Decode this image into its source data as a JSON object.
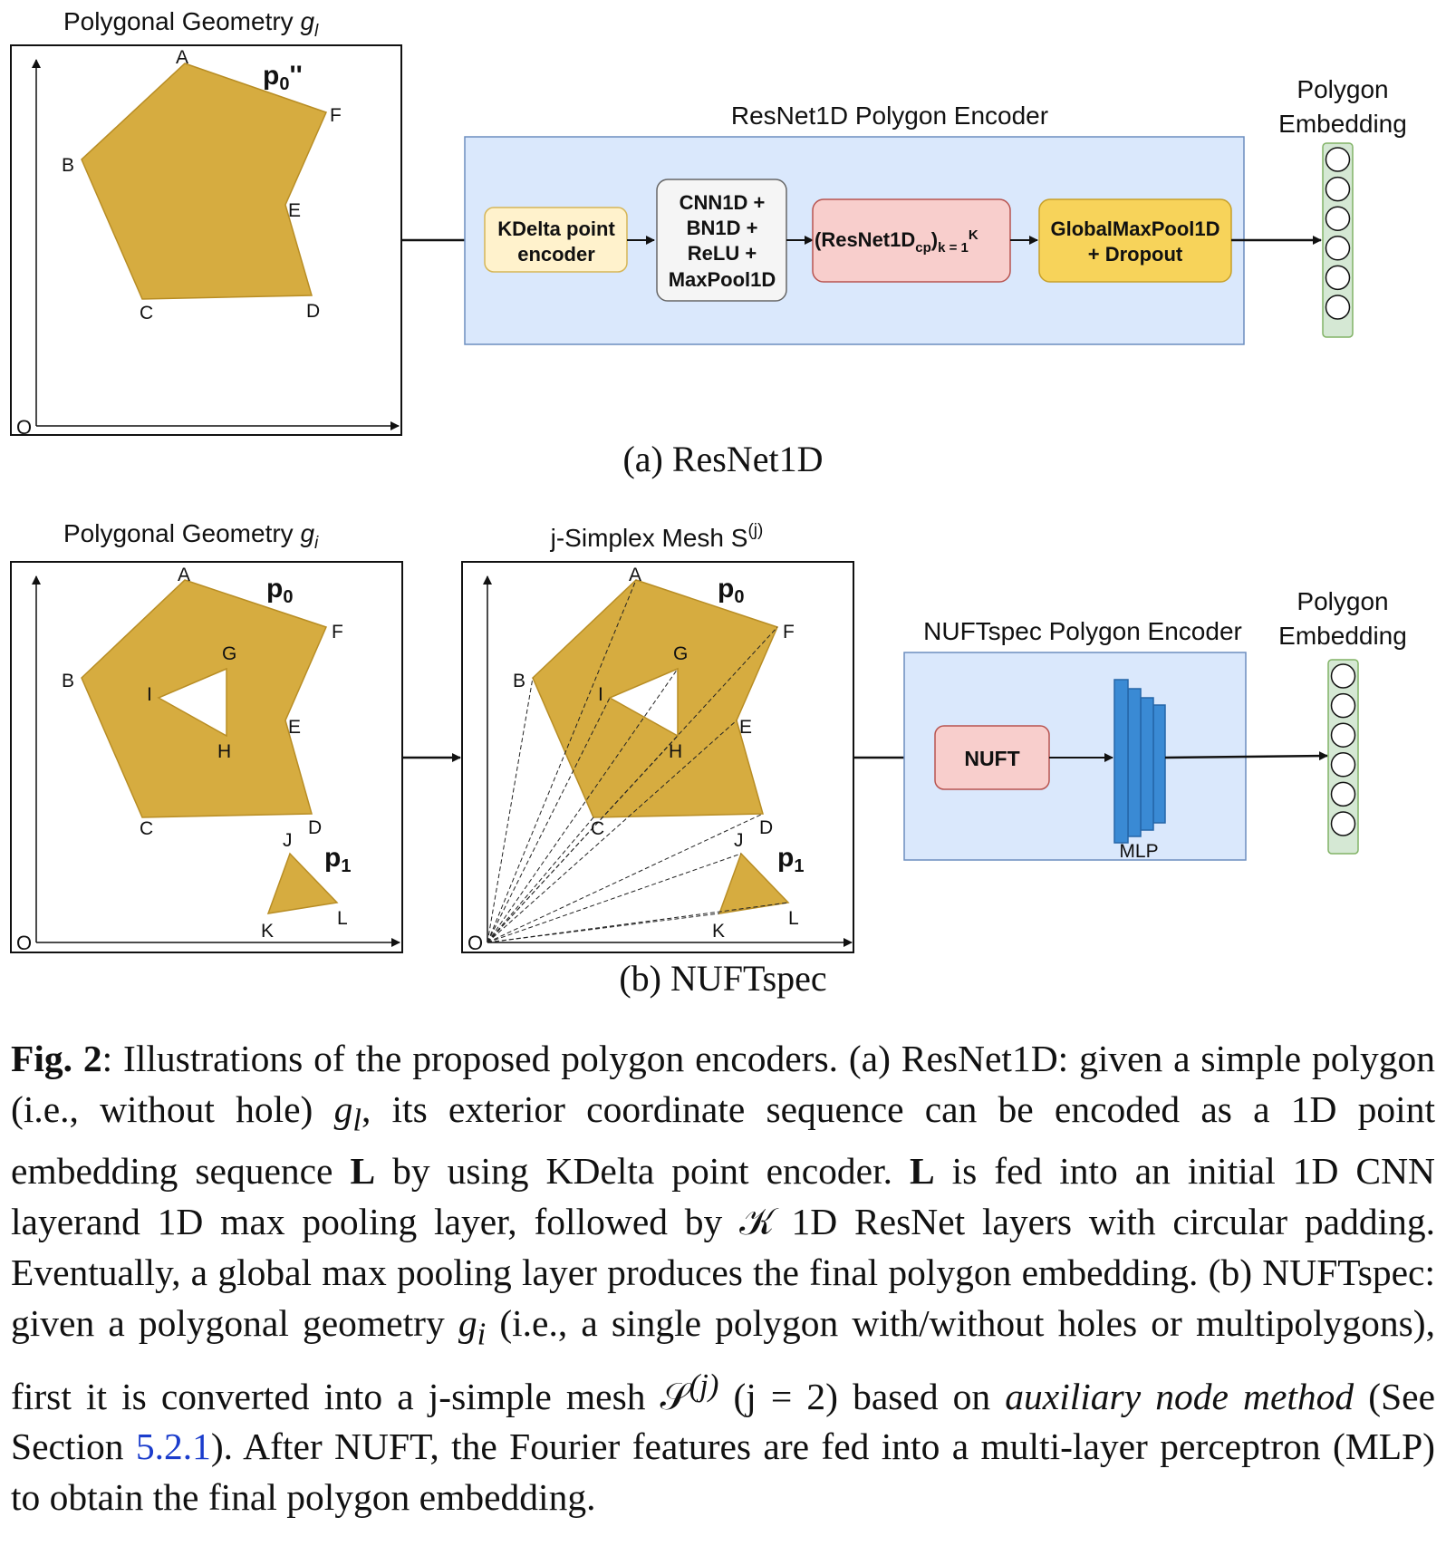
{
  "panel_a": {
    "geometry_title": "Polygonal Geometry",
    "geometry_symbol": "g",
    "geometry_subscript": "l",
    "polygon_label": "p0''",
    "vertices": [
      "A",
      "B",
      "C",
      "D",
      "E",
      "F"
    ],
    "origin": "O",
    "encoder_title": "ResNet1D Polygon Encoder",
    "blocks": {
      "kdelta": [
        "KDelta point",
        "encoder"
      ],
      "cnn": [
        "CNN1D +",
        "BN1D +",
        "ReLU +",
        "MaxPool1D"
      ],
      "resnet": "(ResNet1Dcp)k = 1K",
      "global": [
        "GlobalMaxPool1D",
        "+ Dropout"
      ]
    },
    "embedding_title": [
      "Polygon",
      "Embedding"
    ],
    "caption": "(a) ResNet1D"
  },
  "panel_b": {
    "geometry_title": "Polygonal Geometry",
    "geometry_symbol": "g",
    "geometry_subscript": "i",
    "mesh_title": "j-Simplex Mesh S(j)",
    "polygon_labels": [
      "p0",
      "p1"
    ],
    "vertices": [
      "A",
      "B",
      "C",
      "D",
      "E",
      "F",
      "G",
      "H",
      "I",
      "J",
      "K",
      "L"
    ],
    "origin": "O",
    "encoder_title": "NUFTspec Polygon Encoder",
    "nuft_label": "NUFT",
    "mlp_label": "MLP",
    "embedding_title": [
      "Polygon",
      "Embedding"
    ],
    "caption": "(b) NUFTspec"
  },
  "figure_caption": {
    "label": "Fig. 2",
    "part1": ": Illustrations of the proposed polygon encoders. (a) ResNet1D: given a simple polygon (i.e., without hole) ",
    "sym_gl": "g",
    "sub_l": "l",
    "part2": ", its exterior coordinate sequence can be encoded as a 1D point embedding sequence ",
    "bold_L1": "L",
    "part3": " by using KDelta point encoder. ",
    "bold_L2": "L",
    "part4": " is fed into an initial 1D CNN layerand 1D max pooling layer, followed by ",
    "sym_K": "𝒦",
    "part5": " 1D ResNet layers with circular padding. Eventually, a global max pooling layer produces the final polygon embedding. (b) NUFTspec: given a polygonal geometry ",
    "sym_gi": "g",
    "sub_i": "i",
    "part6": " (i.e., a single polygon with/without holes or multipolygons), first it is converted into a j-simple mesh ",
    "sym_S": "𝒮",
    "sup_j": "(j)",
    "part7": " (j = 2) based on ",
    "italic_method": "auxiliary node method",
    "part8": " (See Section ",
    "section_link": "5.2.1",
    "part9": "). After NUFT, the Fourier features are fed into a multi-layer perceptron (MLP) to obtain the final polygon embedding."
  },
  "colors": {
    "polygon_fill": "#d6ac40",
    "encoder_bg": "#dae8fc",
    "encoder_border": "#6c8ebf",
    "kdelta_fill": "#fff2cc",
    "cnn_fill": "#f5f5f5",
    "resnet_fill": "#f8cecc",
    "global_fill": "#f7d35a",
    "embed_fill": "#d5e8d4",
    "mlp_fill": "#3a8ad4"
  }
}
